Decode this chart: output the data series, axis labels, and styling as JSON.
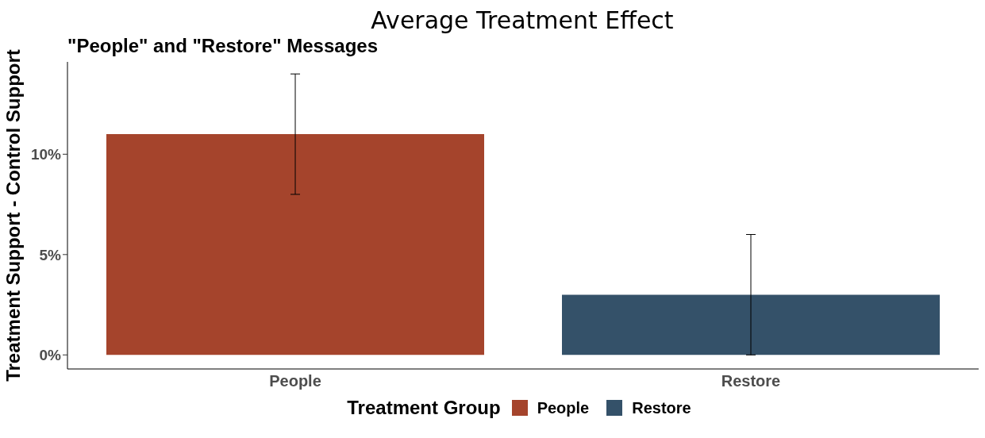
{
  "chart_data": {
    "type": "bar",
    "title": "Average Treatment Effect",
    "subtitle": "\"People\" and \"Restore\" Messages",
    "ylabel": "Treatment Support - Control Support",
    "legend_title": "Treatment Group",
    "categories": [
      "People",
      "Restore"
    ],
    "series": [
      {
        "name": "People",
        "color": "#a5442c",
        "values": [
          11,
          null
        ],
        "errors": [
          [
            8,
            14
          ],
          null
        ]
      },
      {
        "name": "Restore",
        "color": "#345169",
        "values": [
          null,
          3
        ],
        "errors": [
          null,
          [
            0,
            6
          ]
        ]
      }
    ],
    "stacked": true,
    "ylim": [
      -0.7,
      14.6
    ],
    "yticks": [
      {
        "value": 0,
        "label": "0%"
      },
      {
        "value": 5,
        "label": "5%"
      },
      {
        "value": 10,
        "label": "10%"
      }
    ],
    "grid": false,
    "legend": "bottom"
  }
}
